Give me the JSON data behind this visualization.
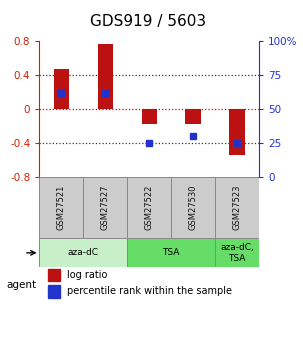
{
  "title": "GDS919 / 5603",
  "samples": [
    "GSM27521",
    "GSM27527",
    "GSM27522",
    "GSM27530",
    "GSM27523"
  ],
  "log_ratio": [
    0.47,
    0.77,
    -0.18,
    -0.18,
    -0.55
  ],
  "percentile_rank": [
    0.62,
    0.62,
    0.25,
    0.3,
    0.25
  ],
  "ylim_left": [
    -0.8,
    0.8
  ],
  "ylim_right": [
    0,
    1.0
  ],
  "yticks_left": [
    -0.8,
    -0.4,
    0.0,
    0.4,
    0.8
  ],
  "ytick_labels_left": [
    "-0.8",
    "-0.4",
    "0",
    "0.4",
    "0.8"
  ],
  "yticks_right": [
    0.0,
    0.25,
    0.5,
    0.75,
    1.0
  ],
  "ytick_labels_right": [
    "0",
    "25",
    "50",
    "75",
    "100%"
  ],
  "hlines": [
    -0.4,
    0.0,
    0.4
  ],
  "agent_groups": [
    {
      "label": "aza-dC",
      "samples": [
        "GSM27521",
        "GSM27527"
      ],
      "color": "#c8f0c8"
    },
    {
      "label": "TSA",
      "samples": [
        "GSM27522",
        "GSM27530"
      ],
      "color": "#66dd66"
    },
    {
      "label": "aza-dC,\nTSA",
      "samples": [
        "GSM27523"
      ],
      "color": "#66dd66"
    }
  ],
  "bar_color": "#bb1111",
  "dot_color": "#2233cc",
  "bar_width": 0.35,
  "legend_log_ratio": "log ratio",
  "legend_percentile": "percentile rank within the sample",
  "agent_label": "agent",
  "title_fontsize": 11,
  "tick_fontsize": 7.5,
  "sample_box_color": "#cccccc",
  "sample_text_color": "#111111"
}
